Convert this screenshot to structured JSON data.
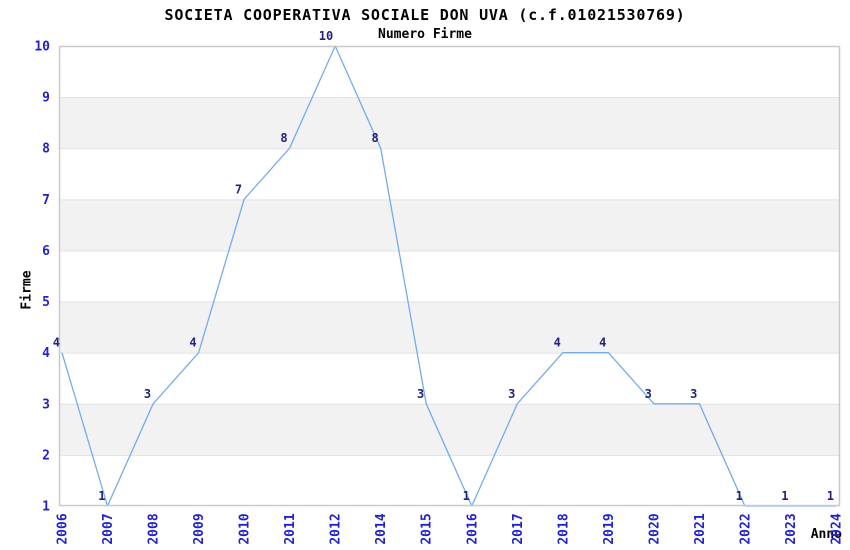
{
  "chart_data": {
    "type": "line",
    "title": "SOCIETA COOPERATIVA SOCIALE DON UVA (c.f.01021530769)",
    "subtitle": "Numero Firme",
    "xlabel": "Anno",
    "ylabel": "Firme",
    "categories": [
      "2006",
      "2007",
      "2008",
      "2009",
      "2010",
      "2011",
      "2012",
      "2014",
      "2015",
      "2016",
      "2017",
      "2018",
      "2019",
      "2020",
      "2021",
      "2022",
      "2023",
      "2024"
    ],
    "values": [
      4,
      1,
      3,
      4,
      7,
      8,
      10,
      8,
      3,
      1,
      3,
      4,
      4,
      3,
      3,
      1,
      1,
      1
    ],
    "ylim": [
      1,
      10
    ],
    "ytick_step": 1,
    "legend": "none",
    "grid": "horizontal alternating bands",
    "note_2013_missing": "category 2013 is not present on the x axis",
    "colors": {
      "line": "#74ace8",
      "point_label": "#22227e",
      "tick_label": "#2222cc",
      "band": "#f2f2f2",
      "gridline": "#e2e2e2",
      "border": "#c9c9c9",
      "title": "#000000",
      "background": "#ffffff"
    }
  }
}
